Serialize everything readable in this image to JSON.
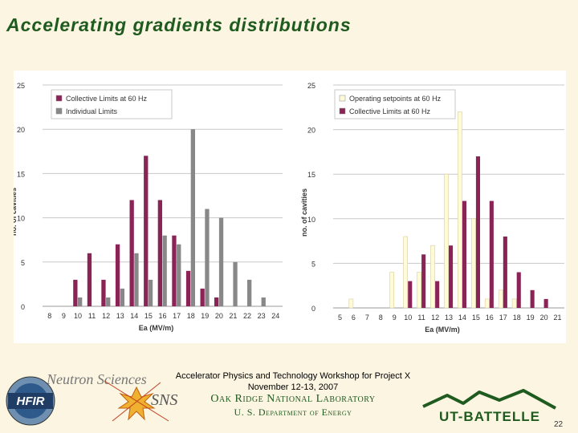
{
  "slide": {
    "title": "Accelerating gradients distributions",
    "footer_line1": "Accelerator Physics and Technology Workshop for Project X",
    "footer_line2": "November 12-13, 2007",
    "lab_name": "Oak Ridge National Laboratory",
    "department": "U. S. Department of Energy",
    "page_number": "22",
    "logos": {
      "neutron_sciences": "Neutron Sciences",
      "hfir": "HFIR",
      "sns": "SNS",
      "ut_battelle": "UT-BATTELLE"
    }
  },
  "colors": {
    "series_collective": "#8b2456",
    "series_individual": "#888888",
    "series_operating": "#fffbd6",
    "title_green": "#1f5a1f"
  },
  "chart_data": [
    {
      "type": "bar",
      "title": "",
      "xlabel": "Ea (MV/m)",
      "ylabel": "no. of cavities",
      "ylim": [
        0,
        25
      ],
      "yticks": [
        0,
        5,
        10,
        15,
        20,
        25
      ],
      "grid": true,
      "legend_position": "top-left",
      "categories": [
        "8",
        "9",
        "10",
        "11",
        "12",
        "13",
        "14",
        "15",
        "16",
        "17",
        "18",
        "19",
        "20",
        "21",
        "22",
        "23",
        "24"
      ],
      "series": [
        {
          "name": "Collective Limits at 60 Hz",
          "color": "#8b2456",
          "values": [
            0,
            0,
            3,
            6,
            3,
            7,
            12,
            17,
            12,
            8,
            4,
            2,
            1,
            0,
            0,
            0,
            0
          ]
        },
        {
          "name": "Individual Limits",
          "color": "#888888",
          "values": [
            0,
            0,
            1,
            0,
            1,
            2,
            6,
            3,
            8,
            7,
            20,
            11,
            10,
            5,
            3,
            1,
            0
          ]
        }
      ]
    },
    {
      "type": "bar",
      "title": "",
      "xlabel": "Ea (MV/m)",
      "ylabel": "no. of cavities",
      "ylim": [
        0,
        25
      ],
      "yticks": [
        0,
        5,
        10,
        15,
        20,
        25
      ],
      "grid": true,
      "legend_position": "top-left",
      "categories": [
        "5",
        "6",
        "7",
        "8",
        "9",
        "10",
        "11",
        "12",
        "13",
        "14",
        "15",
        "16",
        "17",
        "18",
        "19",
        "20",
        "21"
      ],
      "series": [
        {
          "name": "Operating setpoints at 60 Hz",
          "color": "#fffbd6",
          "values": [
            0,
            1,
            0,
            0,
            4,
            8,
            4,
            7,
            15,
            22,
            10,
            1,
            2,
            1,
            0,
            0,
            0
          ]
        },
        {
          "name": "Collective Limits at 60 Hz",
          "color": "#8b2456",
          "values": [
            0,
            0,
            0,
            0,
            0,
            3,
            6,
            3,
            7,
            12,
            17,
            12,
            8,
            4,
            2,
            1,
            0
          ]
        }
      ]
    }
  ]
}
